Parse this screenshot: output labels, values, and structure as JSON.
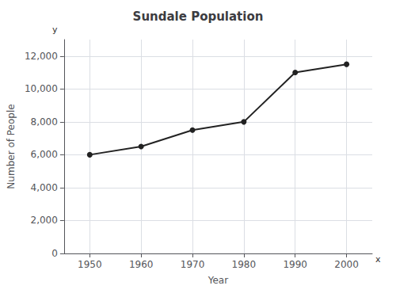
{
  "chart_data": {
    "type": "line",
    "title": "Sundale Population",
    "xlabel": "Year",
    "ylabel": "Number of People",
    "x": [
      1950,
      1960,
      1970,
      1980,
      1990,
      2000
    ],
    "values": [
      6000,
      6500,
      7500,
      8000,
      11000,
      11500
    ],
    "color": "#222222",
    "marker": "circle",
    "xlim": [
      1945,
      2005
    ],
    "xticks": [
      1950,
      1960,
      1970,
      1980,
      1990,
      2000
    ],
    "ylim": [
      0,
      13000
    ],
    "yticks": [
      0,
      {
        "value": 2000,
        "label": "2,000"
      },
      {
        "value": 4000,
        "label": "4,000"
      },
      {
        "value": 6000,
        "label": "6,000"
      },
      {
        "value": 8000,
        "label": "8,000"
      },
      {
        "value": 10000,
        "label": "10,000"
      },
      {
        "value": 12000,
        "label": "12,000"
      }
    ],
    "grid": true,
    "annotations": [
      "y",
      "x"
    ]
  }
}
